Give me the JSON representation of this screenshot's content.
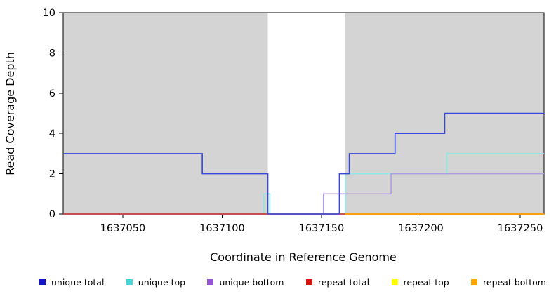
{
  "chart_data": {
    "type": "line",
    "title": "",
    "xlabel": "Coordinate in Reference Genome",
    "ylabel": "Read Coverage Depth",
    "xlim": [
      1637020,
      1637262
    ],
    "ylim": [
      0,
      10
    ],
    "xticks": [
      1637050,
      1637100,
      1637150,
      1637200,
      1637250
    ],
    "yticks": [
      0,
      2,
      4,
      6,
      8,
      10
    ],
    "plot_background": "#ffffff",
    "shaded_region_color": "#d4d4d4",
    "shaded_regions": [
      {
        "x0": 1637020,
        "x1": 1637123
      },
      {
        "x0": 1637162,
        "x1": 1637262
      }
    ],
    "series": [
      {
        "name": "repeat top",
        "color": "#ffff00",
        "steps": [
          [
            1637020,
            0
          ]
        ],
        "xend": 1637262
      },
      {
        "name": "unique top",
        "color": "#8ae8e8",
        "steps": [
          [
            1637020,
            0
          ],
          [
            1637121,
            1
          ],
          [
            1637124,
            0
          ],
          [
            1637162,
            2
          ],
          [
            1637213,
            3
          ]
        ],
        "xend": 1637262
      },
      {
        "name": "unique bottom",
        "color": "#b09ae6",
        "steps": [
          [
            1637020,
            0
          ],
          [
            1637151,
            1
          ],
          [
            1637185,
            2
          ]
        ],
        "xend": 1637262
      },
      {
        "name": "repeat total",
        "color": "#c62828",
        "steps": [
          [
            1637020,
            0
          ]
        ],
        "xend": 1637262
      },
      {
        "name": "repeat bottom",
        "color": "#ffa500",
        "steps": [
          [
            1637162,
            0
          ]
        ],
        "xend": 1637262
      },
      {
        "name": "unique total",
        "color": "#3448dc",
        "steps": [
          [
            1637020,
            3
          ],
          [
            1637090,
            2
          ],
          [
            1637123,
            0
          ],
          [
            1637159,
            2
          ],
          [
            1637164,
            3
          ],
          [
            1637187,
            4
          ],
          [
            1637212,
            5
          ]
        ],
        "xend": 1637262
      }
    ]
  },
  "legend": {
    "items": [
      {
        "label": "unique total",
        "color": "#1414cc"
      },
      {
        "label": "unique top",
        "color": "#45d6d6"
      },
      {
        "label": "unique bottom",
        "color": "#9355d2"
      },
      {
        "label": "repeat total",
        "color": "#d41414"
      },
      {
        "label": "repeat top",
        "color": "#ffff00"
      },
      {
        "label": "repeat bottom",
        "color": "#ffa500"
      }
    ]
  }
}
